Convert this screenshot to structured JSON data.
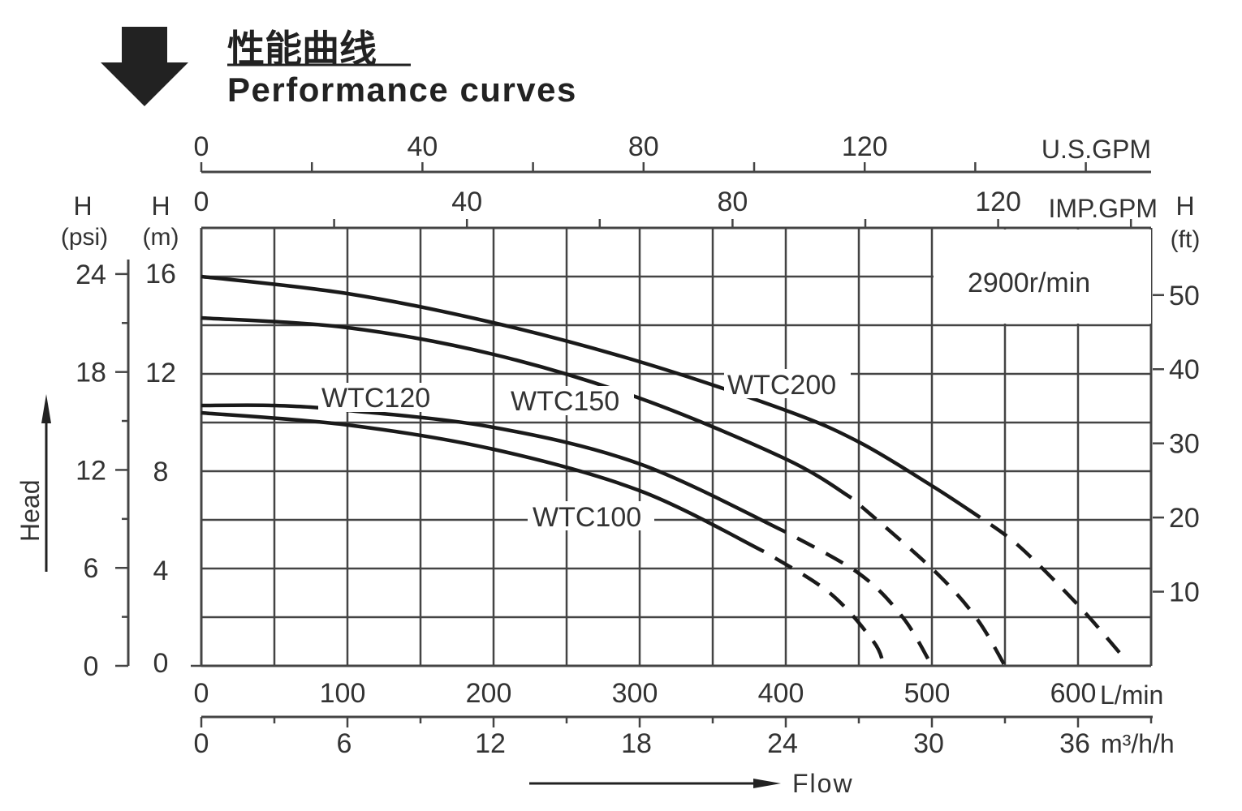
{
  "header": {
    "title_cn": "性能曲线",
    "title_en": "Performance curves"
  },
  "chart_data": {
    "type": "line",
    "title": "Performance curves",
    "speed_label": "2900r/min",
    "x_axes": {
      "lmin": {
        "unit": "L/min",
        "ticks": [
          0,
          100,
          200,
          300,
          400,
          500,
          600
        ],
        "range": [
          0,
          650
        ]
      },
      "m3h": {
        "unit": "m³/h",
        "ticks": [
          0,
          6,
          12,
          18,
          24,
          30,
          36
        ]
      },
      "usgpm": {
        "unit": "U.S.GPM",
        "ticks": [
          0,
          40,
          80,
          120
        ]
      },
      "impgpm": {
        "unit": "IMP.GPM",
        "ticks": [
          0,
          40,
          80,
          120
        ]
      }
    },
    "y_axes": {
      "m": {
        "label": "H",
        "unit": "(m)",
        "ticks": [
          0,
          4,
          8,
          12,
          16
        ],
        "range": [
          0,
          18
        ]
      },
      "psi": {
        "label": "H",
        "unit": "(psi)",
        "ticks": [
          0,
          6,
          12,
          18,
          24
        ]
      },
      "ft": {
        "label": "H",
        "unit": "(ft)",
        "ticks": [
          10,
          20,
          30,
          40,
          50
        ]
      }
    },
    "xlabel": "Flow",
    "ylabel": "Head",
    "grid": true,
    "series": [
      {
        "name": "WTC200",
        "dash_from": 533,
        "points": [
          [
            0,
            16
          ],
          [
            100,
            15.3
          ],
          [
            200,
            14.1
          ],
          [
            300,
            12.5
          ],
          [
            400,
            10.5
          ],
          [
            450,
            9.2
          ],
          [
            500,
            7.4
          ],
          [
            533,
            6.1
          ],
          [
            560,
            4.9
          ],
          [
            600,
            2.5
          ],
          [
            629,
            0.5
          ]
        ]
      },
      {
        "name": "WTC150",
        "dash_from": 445,
        "points": [
          [
            0,
            14.3
          ],
          [
            100,
            13.9
          ],
          [
            200,
            12.8
          ],
          [
            300,
            11.0
          ],
          [
            400,
            8.5
          ],
          [
            445,
            6.9
          ],
          [
            500,
            4.0
          ],
          [
            530,
            2.0
          ],
          [
            550,
            0
          ]
        ]
      },
      {
        "name": "WTC120",
        "dash_from": 400,
        "points": [
          [
            0,
            10.7
          ],
          [
            50,
            10.7
          ],
          [
            100,
            10.5
          ],
          [
            200,
            9.8
          ],
          [
            300,
            8.3
          ],
          [
            400,
            5.5
          ],
          [
            450,
            3.8
          ],
          [
            480,
            2.0
          ],
          [
            500,
            0
          ]
        ]
      },
      {
        "name": "WTC100",
        "dash_from": 385,
        "points": [
          [
            0,
            10.4
          ],
          [
            100,
            9.9
          ],
          [
            200,
            8.9
          ],
          [
            300,
            7.2
          ],
          [
            385,
            4.7
          ],
          [
            430,
            3.0
          ],
          [
            460,
            1.0
          ],
          [
            467,
            0
          ]
        ]
      }
    ]
  }
}
